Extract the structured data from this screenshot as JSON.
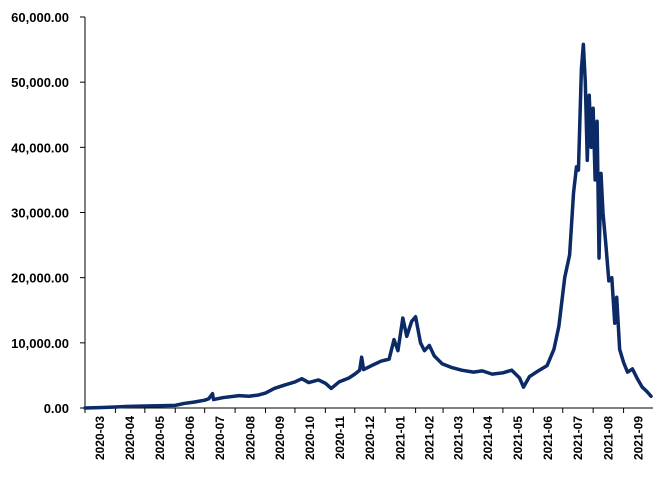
{
  "chart_data": {
    "type": "line",
    "title": "",
    "xlabel": "",
    "ylabel": "",
    "ylim": [
      0,
      60000
    ],
    "yticks": [
      "0.00",
      "10,000.00",
      "20,000.00",
      "30,000.00",
      "40,000.00",
      "50,000.00",
      "60,000.00"
    ],
    "categories": [
      "2020-03",
      "2020-04",
      "2020-05",
      "2020-06",
      "2020-07",
      "2020-08",
      "2020-09",
      "2020-10",
      "2020-11",
      "2020-12",
      "2021-01",
      "2021-02",
      "2021-03",
      "2021-04",
      "2021-05",
      "2021-06",
      "2021-07",
      "2021-08",
      "2021-09"
    ],
    "grid": false,
    "legend": "none",
    "line_color": "#0b2a66",
    "series": [
      {
        "name": "",
        "points": [
          [
            "2020-03-01",
            0
          ],
          [
            "2020-03-15",
            50
          ],
          [
            "2020-04-01",
            150
          ],
          [
            "2020-04-15",
            250
          ],
          [
            "2020-05-01",
            300
          ],
          [
            "2020-05-15",
            350
          ],
          [
            "2020-06-01",
            400
          ],
          [
            "2020-06-10",
            700
          ],
          [
            "2020-06-20",
            900
          ],
          [
            "2020-07-01",
            1200
          ],
          [
            "2020-07-05",
            1400
          ],
          [
            "2020-07-09",
            2200
          ],
          [
            "2020-07-10",
            1300
          ],
          [
            "2020-07-20",
            1600
          ],
          [
            "2020-07-31",
            1800
          ],
          [
            "2020-08-05",
            1900
          ],
          [
            "2020-08-15",
            1800
          ],
          [
            "2020-08-25",
            2000
          ],
          [
            "2020-09-01",
            2300
          ],
          [
            "2020-09-10",
            3000
          ],
          [
            "2020-09-20",
            3500
          ],
          [
            "2020-10-01",
            4000
          ],
          [
            "2020-10-08",
            4500
          ],
          [
            "2020-10-15",
            3900
          ],
          [
            "2020-10-25",
            4300
          ],
          [
            "2020-11-01",
            3800
          ],
          [
            "2020-11-07",
            3000
          ],
          [
            "2020-11-15",
            4000
          ],
          [
            "2020-11-25",
            4600
          ],
          [
            "2020-12-01",
            5200
          ],
          [
            "2020-12-06",
            5800
          ],
          [
            "2020-12-08",
            7800
          ],
          [
            "2020-12-10",
            5900
          ],
          [
            "2020-12-18",
            6500
          ],
          [
            "2020-12-28",
            7200
          ],
          [
            "2021-01-05",
            7500
          ],
          [
            "2021-01-10",
            10500
          ],
          [
            "2021-01-14",
            8800
          ],
          [
            "2021-01-19",
            13800
          ],
          [
            "2021-01-23",
            11000
          ],
          [
            "2021-01-28",
            13300
          ],
          [
            "2021-02-01",
            14000
          ],
          [
            "2021-02-06",
            10000
          ],
          [
            "2021-02-10",
            8800
          ],
          [
            "2021-02-15",
            9600
          ],
          [
            "2021-02-20",
            8000
          ],
          [
            "2021-02-28",
            6800
          ],
          [
            "2021-03-10",
            6200
          ],
          [
            "2021-03-20",
            5800
          ],
          [
            "2021-04-01",
            5500
          ],
          [
            "2021-04-10",
            5700
          ],
          [
            "2021-04-20",
            5200
          ],
          [
            "2021-05-01",
            5400
          ],
          [
            "2021-05-10",
            5800
          ],
          [
            "2021-05-18",
            4600
          ],
          [
            "2021-05-22",
            3200
          ],
          [
            "2021-05-28",
            4800
          ],
          [
            "2021-06-05",
            5600
          ],
          [
            "2021-06-15",
            6500
          ],
          [
            "2021-06-22",
            9000
          ],
          [
            "2021-06-27",
            12500
          ],
          [
            "2021-07-03",
            20000
          ],
          [
            "2021-07-08",
            23500
          ],
          [
            "2021-07-12",
            33000
          ],
          [
            "2021-07-15",
            37000
          ],
          [
            "2021-07-17",
            36500
          ],
          [
            "2021-07-20",
            52000
          ],
          [
            "2021-07-22",
            55800
          ],
          [
            "2021-07-24",
            50000
          ],
          [
            "2021-07-26",
            38000
          ],
          [
            "2021-07-28",
            48000
          ],
          [
            "2021-07-30",
            40000
          ],
          [
            "2021-08-01",
            46000
          ],
          [
            "2021-08-03",
            35000
          ],
          [
            "2021-08-05",
            44000
          ],
          [
            "2021-08-07",
            23000
          ],
          [
            "2021-08-09",
            36000
          ],
          [
            "2021-08-11",
            30000
          ],
          [
            "2021-08-14",
            25000
          ],
          [
            "2021-08-17",
            19500
          ],
          [
            "2021-08-20",
            20000
          ],
          [
            "2021-08-23",
            13000
          ],
          [
            "2021-08-25",
            17000
          ],
          [
            "2021-08-28",
            9000
          ],
          [
            "2021-09-01",
            7000
          ],
          [
            "2021-09-05",
            5500
          ],
          [
            "2021-09-10",
            6000
          ],
          [
            "2021-09-15",
            4500
          ],
          [
            "2021-09-20",
            3200
          ],
          [
            "2021-09-25",
            2500
          ],
          [
            "2021-09-29",
            1800
          ]
        ]
      }
    ]
  }
}
